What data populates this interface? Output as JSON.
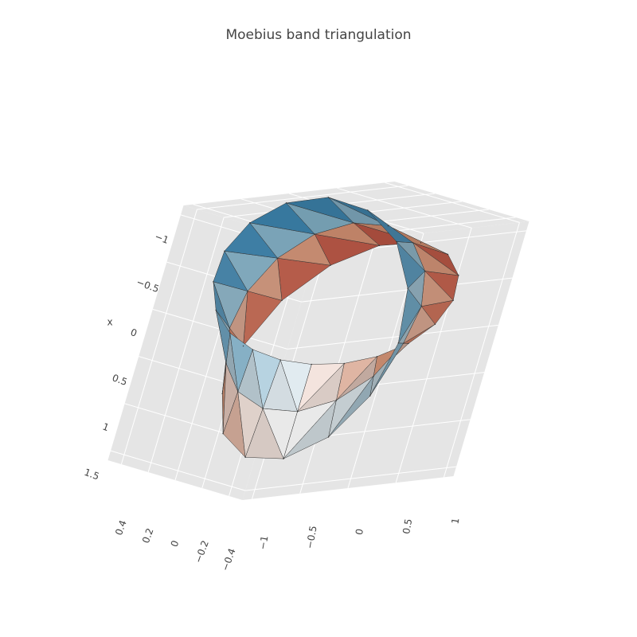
{
  "chart_data": {
    "type": "mesh3d",
    "title": "Moebius band triangulation",
    "xlabel": "x",
    "x": [
      0.5,
      1,
      1.5,
      0.471,
      0.924,
      1.377,
      0.38,
      0.707,
      1.034,
      0.224,
      0.383,
      0.542,
      0,
      0,
      0,
      -0.277,
      -0.383,
      -0.489,
      -0.572,
      -0.707,
      -0.842,
      -0.833,
      -0.924,
      -1.015,
      -1,
      -1,
      -1,
      -1.015,
      -0.924,
      -0.833,
      -0.842,
      -0.707,
      -0.572,
      -0.489,
      -0.383,
      -0.277,
      0,
      0,
      0,
      0.542,
      0.383,
      0.224,
      1.034,
      0.707,
      0.38,
      1.377,
      0.924,
      0.471
    ],
    "y": [
      0,
      0,
      0,
      0.195,
      0.383,
      0.571,
      0.38,
      0.707,
      1.034,
      0.54,
      0.924,
      1.308,
      0.646,
      1,
      1.354,
      0.667,
      0.924,
      1.181,
      0.572,
      0.707,
      0.842,
      0.345,
      0.383,
      0.421,
      0,
      0,
      0,
      -0.421,
      -0.383,
      -0.345,
      -0.842,
      -0.707,
      -0.572,
      -1.181,
      -0.924,
      -0.667,
      -1.354,
      -1,
      -0.646,
      -1.308,
      -0.924,
      -0.54,
      -1.034,
      -0.707,
      -0.38,
      -0.571,
      -0.383,
      -0.195
    ],
    "z": [
      0,
      0,
      0,
      -0.098,
      0,
      0.098,
      -0.191,
      0,
      0.191,
      -0.278,
      0,
      0.278,
      -0.354,
      0,
      0.354,
      -0.416,
      0,
      0.416,
      -0.462,
      0,
      0.462,
      -0.49,
      0,
      0.49,
      -0.5,
      0,
      0.5,
      -0.49,
      0,
      0.49,
      -0.462,
      0,
      0.462,
      -0.416,
      0,
      0.416,
      -0.354,
      0,
      0.354,
      -0.278,
      0,
      0.278,
      -0.191,
      0,
      0.191,
      -0.098,
      0,
      0.098
    ],
    "i": [
      0,
      1,
      1,
      2,
      3,
      4,
      4,
      5,
      6,
      7,
      7,
      8,
      9,
      10,
      10,
      11,
      12,
      13,
      13,
      14,
      15,
      16,
      16,
      17,
      18,
      19,
      19,
      20,
      21,
      22,
      22,
      23,
      24,
      25,
      25,
      26,
      27,
      28,
      28,
      29,
      30,
      31,
      31,
      32,
      33,
      34,
      34,
      35,
      36,
      37,
      37,
      38,
      39,
      40,
      40,
      41,
      42,
      43,
      43,
      44,
      45,
      46,
      46,
      47
    ],
    "j": [
      1,
      4,
      2,
      5,
      4,
      7,
      5,
      8,
      7,
      10,
      8,
      11,
      10,
      13,
      11,
      14,
      13,
      16,
      14,
      17,
      16,
      19,
      17,
      20,
      19,
      22,
      20,
      23,
      22,
      25,
      23,
      26,
      25,
      28,
      26,
      29,
      28,
      31,
      29,
      32,
      31,
      34,
      32,
      35,
      34,
      37,
      35,
      38,
      37,
      40,
      38,
      41,
      40,
      43,
      41,
      44,
      43,
      46,
      44,
      47,
      46,
      1,
      47,
      0
    ],
    "k": [
      3,
      3,
      4,
      4,
      6,
      6,
      7,
      7,
      9,
      9,
      10,
      10,
      12,
      12,
      13,
      13,
      15,
      15,
      16,
      16,
      18,
      18,
      19,
      19,
      21,
      21,
      22,
      22,
      24,
      24,
      25,
      25,
      27,
      27,
      28,
      28,
      30,
      30,
      31,
      31,
      33,
      33,
      34,
      34,
      36,
      36,
      37,
      37,
      39,
      39,
      40,
      40,
      42,
      42,
      43,
      43,
      45,
      45,
      46,
      46,
      2,
      2,
      1,
      1
    ],
    "colorscale": [
      "#b2182b",
      "#d6604d",
      "#f4a582",
      "#f7f7f7",
      "#92c5de",
      "#4393c3",
      "#08306b"
    ],
    "edge_color": "#333333",
    "xlim": [
      -1.1,
      1.6
    ],
    "ylim": [
      -1.1,
      1.1
    ],
    "zlim": [
      -0.5,
      0.5
    ],
    "xticks": [
      {
        "value": -1,
        "label": "−1"
      },
      {
        "value": -0.5,
        "label": "−0.5"
      },
      0,
      0.5,
      1,
      1.5
    ],
    "yticks": [
      {
        "value": -1,
        "label": "−1"
      },
      {
        "value": -0.5,
        "label": "−0.5"
      },
      0,
      0.5,
      1
    ],
    "zticks": [
      {
        "value": -0.4,
        "label": "−0.4"
      },
      {
        "value": -0.2,
        "label": "−0.2"
      },
      0,
      0.2,
      0.4
    ],
    "grid": true
  }
}
